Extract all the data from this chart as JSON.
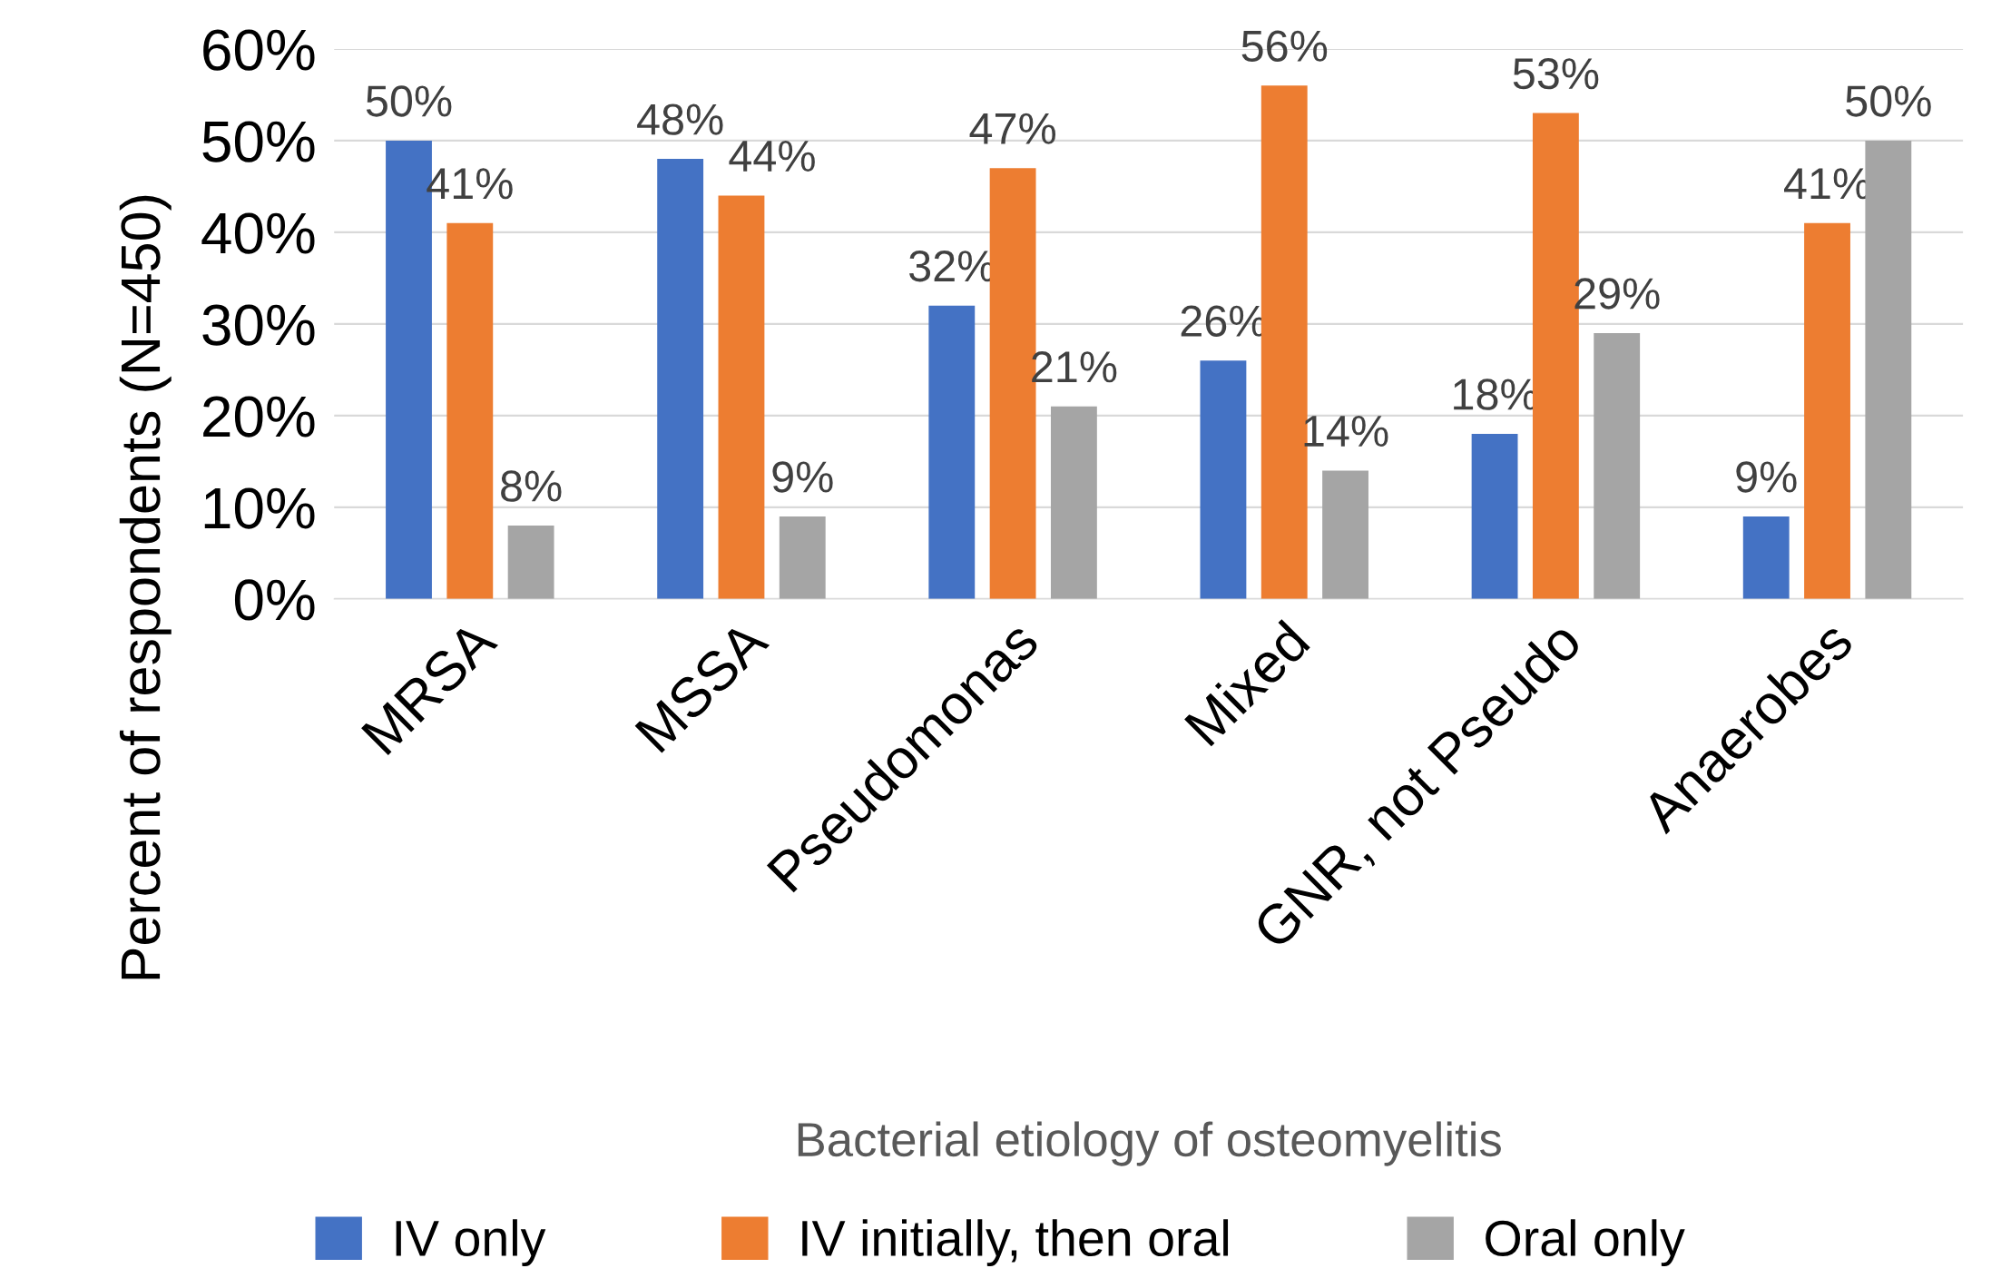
{
  "chart_data": {
    "type": "bar",
    "xlabel": "Bacterial etiology of osteomyelitis",
    "ylabel": "Percent of respondents (N=450)",
    "categories": [
      "MRSA",
      "MSSA",
      "Pseudomonas",
      "Mixed",
      "GNR, not Pseudo",
      "Anaerobes"
    ],
    "series": [
      {
        "name": "IV only",
        "color": "#4472c4",
        "values": [
          50,
          48,
          32,
          26,
          18,
          9
        ],
        "value_labels": [
          "50%",
          "48%",
          "32%",
          "26%",
          "18%",
          "9%"
        ]
      },
      {
        "name": "IV initially, then oral",
        "color": "#ed7d31",
        "values": [
          41,
          44,
          47,
          56,
          53,
          41
        ],
        "value_labels": [
          "41%",
          "44%",
          "47%",
          "56%",
          "53%",
          "41%"
        ]
      },
      {
        "name": "Oral only",
        "color": "#a5a5a5",
        "values": [
          8,
          9,
          21,
          14,
          29,
          50
        ],
        "value_labels": [
          "8%",
          "9%",
          "21%",
          "14%",
          "29%",
          "50%"
        ]
      }
    ],
    "ylim": [
      0,
      60
    ],
    "yticks": [
      {
        "value": 0,
        "label": "0%"
      },
      {
        "value": 10,
        "label": "10%"
      },
      {
        "value": 20,
        "label": "20%"
      },
      {
        "value": 30,
        "label": "30%"
      },
      {
        "value": 40,
        "label": "40%"
      },
      {
        "value": 50,
        "label": "50%"
      },
      {
        "value": 60,
        "label": "60%"
      }
    ],
    "grid": "y",
    "legend": "bottom"
  }
}
